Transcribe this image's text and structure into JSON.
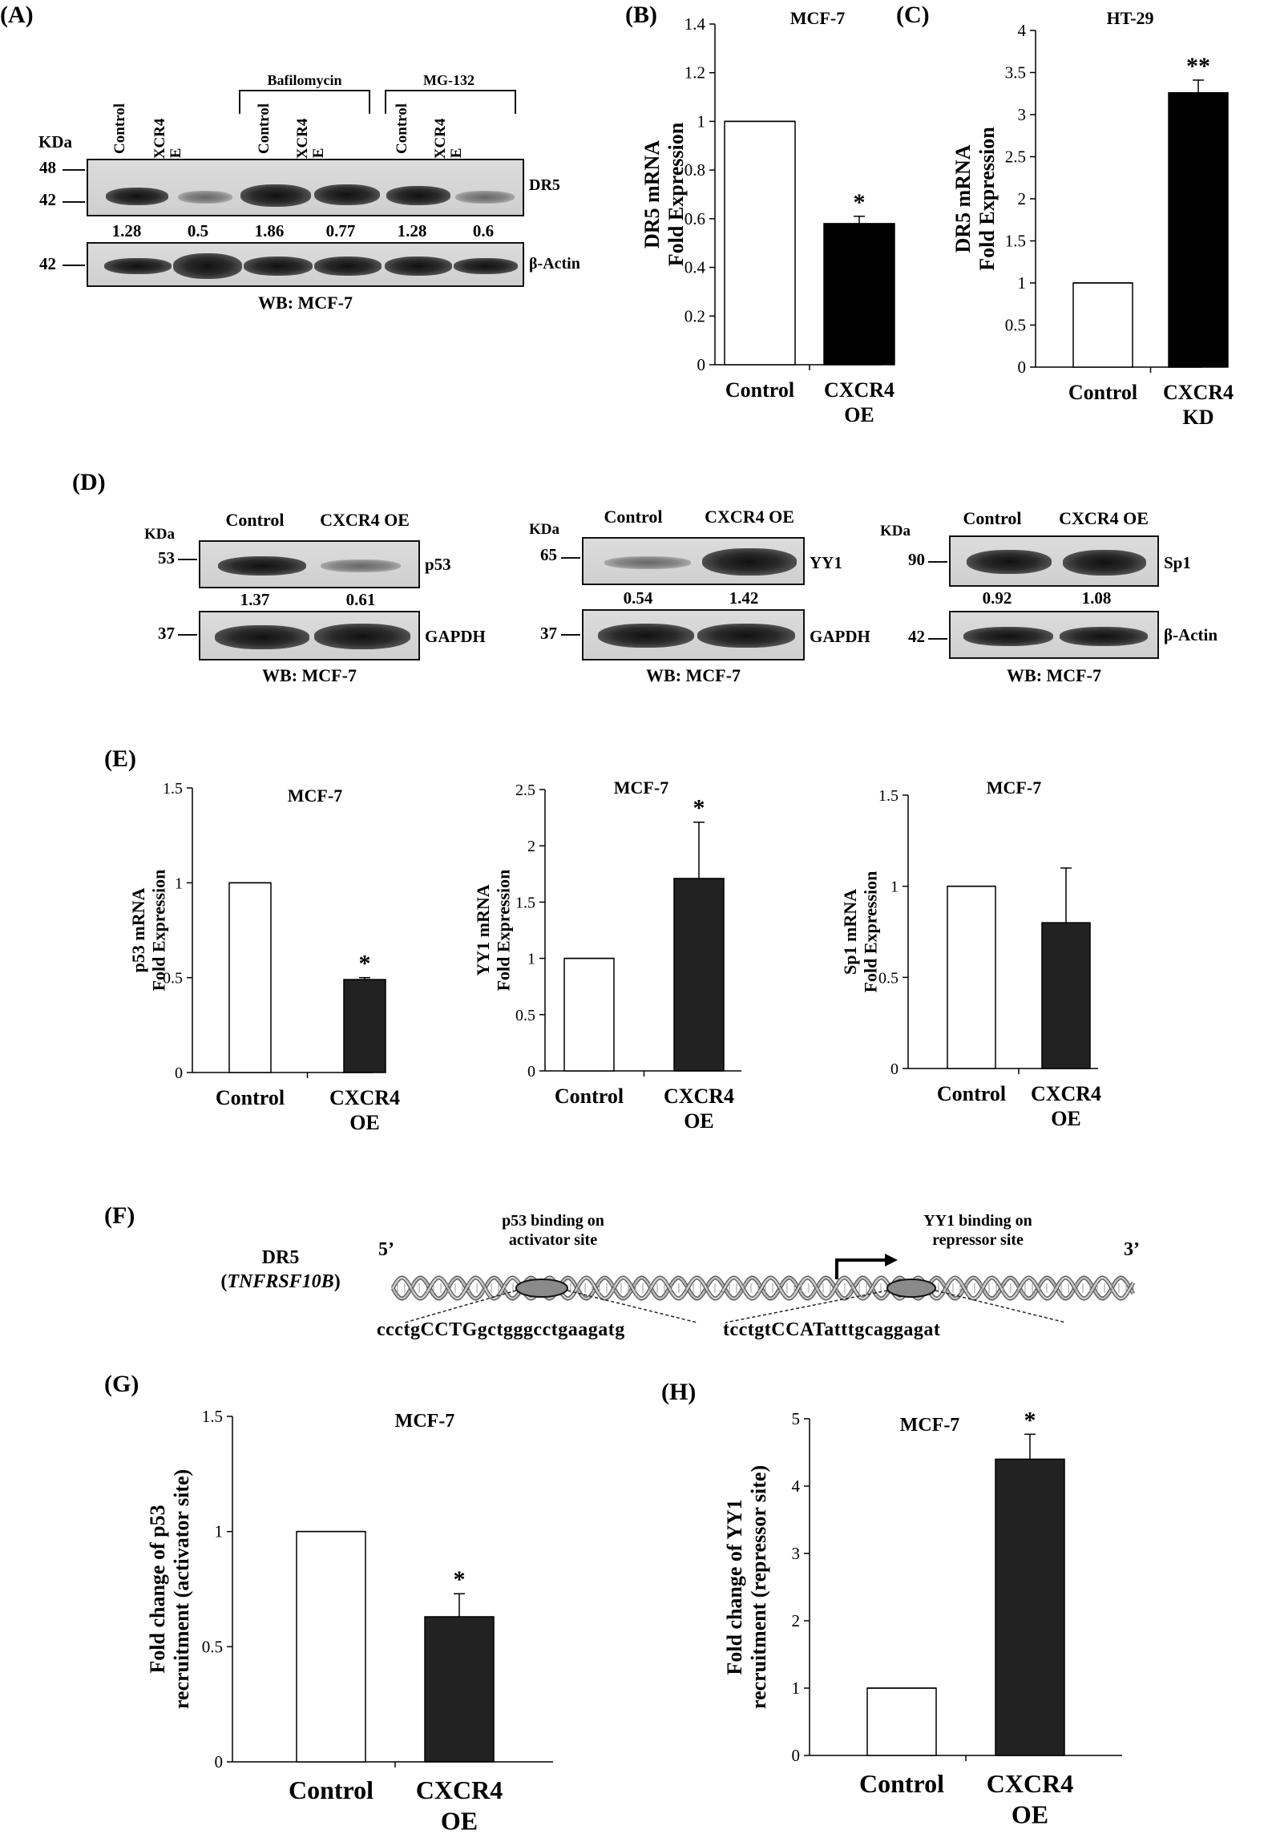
{
  "panels": {
    "A": "(A)",
    "B": "(B)",
    "C": "(C)",
    "D": "(D)",
    "E": "(E)",
    "F": "(F)",
    "G": "(G)",
    "H": "(H)"
  },
  "panel_a": {
    "kda": "KDa",
    "lanes": [
      "Control",
      "CXCR4 OE",
      "Control",
      "CXCR4 OE",
      "Control",
      "CXCR4 OE"
    ],
    "bafilomycin": "Bafilomycin",
    "mg132": "MG-132",
    "mw_dr5": [
      "48",
      "42"
    ],
    "mw_actin": "42",
    "dr5_label": "DR5",
    "actin_label": "β-Actin",
    "quant": [
      "1.28",
      "0.5",
      "1.86",
      "0.77",
      "1.28",
      "0.6"
    ],
    "wb": "WB: MCF-7"
  },
  "panel_d": {
    "blots": [
      {
        "kda": "KDa",
        "lanes": [
          "Control",
          "CXCR4 OE"
        ],
        "mw_top": "53",
        "mw_bottom": "37",
        "top_label": "p53",
        "bottom_label": "GAPDH",
        "quant": [
          "1.37",
          "0.61"
        ],
        "wb": "WB: MCF-7"
      },
      {
        "kda": "KDa",
        "lanes": [
          "Control",
          "CXCR4 OE"
        ],
        "mw_top": "65",
        "mw_bottom": "37",
        "top_label": "YY1",
        "bottom_label": "GAPDH",
        "quant": [
          "0.54",
          "1.42"
        ],
        "wb": "WB: MCF-7"
      },
      {
        "kda": "KDa",
        "lanes": [
          "Control",
          "CXCR4 OE"
        ],
        "mw_top": "90",
        "mw_bottom": "42",
        "top_label": "Sp1",
        "bottom_label": "β-Actin",
        "quant": [
          "0.92",
          "1.08"
        ],
        "wb": "WB: MCF-7"
      }
    ]
  },
  "panel_f": {
    "gene": "DR5",
    "gene_italic": "TNFRSF10B",
    "five": "5’",
    "three": "3’",
    "p53_site_1": "p53 binding on",
    "p53_site_2": "activator site",
    "yy1_site_1": "YY1 binding on",
    "yy1_site_2": "repressor site",
    "seq_p53": "ccctgCCTGgctgggcctgaagatg",
    "seq_yy1": "tcctgtCCATatttgcaggagat"
  },
  "chart_data": [
    {
      "id": "B",
      "type": "bar",
      "title": "MCF-7",
      "ylabel": [
        "DR5 mRNA",
        "Fold Expression"
      ],
      "categories": [
        [
          "Control"
        ],
        [
          "CXCR4",
          "OE"
        ]
      ],
      "values": [
        1.0,
        0.58
      ],
      "errors": [
        0,
        0.03
      ],
      "sig": [
        "",
        "*"
      ],
      "ylim": [
        0,
        1.4
      ],
      "yticks": [
        "0",
        "0.2",
        "0.4",
        "0.6",
        "0.8",
        "1",
        "1.2",
        "1.4"
      ],
      "colors": [
        "#ffffff",
        "#000000"
      ]
    },
    {
      "id": "C",
      "type": "bar",
      "title": "HT-29",
      "ylabel": [
        "DR5 mRNA",
        "Fold Expression"
      ],
      "categories": [
        [
          "Control"
        ],
        [
          "CXCR4",
          "KD"
        ]
      ],
      "values": [
        1.0,
        3.26
      ],
      "errors": [
        0,
        0.15
      ],
      "sig": [
        "",
        "**"
      ],
      "ylim": [
        0,
        4
      ],
      "yticks": [
        "0",
        "0.5",
        "1",
        "1.5",
        "2",
        "2.5",
        "3",
        "3.5",
        "4"
      ],
      "colors": [
        "#ffffff",
        "#000000"
      ]
    },
    {
      "id": "E1",
      "type": "bar",
      "title": "MCF-7",
      "ylabel": [
        "p53 mRNA",
        "Fold Expression"
      ],
      "categories": [
        [
          "Control"
        ],
        [
          "CXCR4",
          "OE"
        ]
      ],
      "values": [
        1.0,
        0.49
      ],
      "errors": [
        0,
        0.01
      ],
      "sig": [
        "",
        "*"
      ],
      "ylim": [
        0,
        1.5
      ],
      "yticks": [
        "0",
        "0.5",
        "1",
        "1.5"
      ],
      "colors": [
        "#ffffff",
        "#222222"
      ]
    },
    {
      "id": "E2",
      "type": "bar",
      "title": "MCF-7",
      "ylabel": [
        "YY1 mRNA",
        "Fold Expression"
      ],
      "categories": [
        [
          "Control"
        ],
        [
          "CXCR4",
          "OE"
        ]
      ],
      "values": [
        1.0,
        1.71
      ],
      "errors": [
        0,
        0.5
      ],
      "sig": [
        "",
        "*"
      ],
      "ylim": [
        0,
        2.5
      ],
      "yticks": [
        "0",
        "0.5",
        "1",
        "1.5",
        "2",
        "2.5"
      ],
      "colors": [
        "#ffffff",
        "#222222"
      ]
    },
    {
      "id": "E3",
      "type": "bar",
      "title": "MCF-7",
      "ylabel": [
        "Sp1 mRNA",
        "Fold Expression"
      ],
      "categories": [
        [
          "Control"
        ],
        [
          "CXCR4",
          "OE"
        ]
      ],
      "values": [
        1.0,
        0.8
      ],
      "errors": [
        0,
        0.3
      ],
      "sig": [
        "",
        ""
      ],
      "ylim": [
        0,
        1.5
      ],
      "yticks": [
        "0",
        "0.5",
        "1",
        "1.5"
      ],
      "colors": [
        "#ffffff",
        "#222222"
      ]
    },
    {
      "id": "G",
      "type": "bar",
      "title": "MCF-7",
      "ylabel": [
        "Fold change of p53",
        "recruitment (activator site)"
      ],
      "categories": [
        [
          "Control"
        ],
        [
          "CXCR4",
          "OE"
        ]
      ],
      "values": [
        1.0,
        0.63
      ],
      "errors": [
        0,
        0.1
      ],
      "sig": [
        "",
        "*"
      ],
      "ylim": [
        0,
        1.5
      ],
      "yticks": [
        "0",
        "0.5",
        "1",
        "1.5"
      ],
      "colors": [
        "#ffffff",
        "#222222"
      ]
    },
    {
      "id": "H",
      "type": "bar",
      "title": "MCF-7",
      "ylabel": [
        "Fold change of YY1",
        "recruitment (repressor site)"
      ],
      "categories": [
        [
          "Control"
        ],
        [
          "CXCR4",
          "OE"
        ]
      ],
      "values": [
        1.0,
        4.4
      ],
      "errors": [
        0,
        0.37
      ],
      "sig": [
        "",
        "*"
      ],
      "ylim": [
        0,
        5
      ],
      "yticks": [
        "0",
        "1",
        "2",
        "3",
        "4",
        "5"
      ],
      "colors": [
        "#ffffff",
        "#222222"
      ]
    }
  ]
}
